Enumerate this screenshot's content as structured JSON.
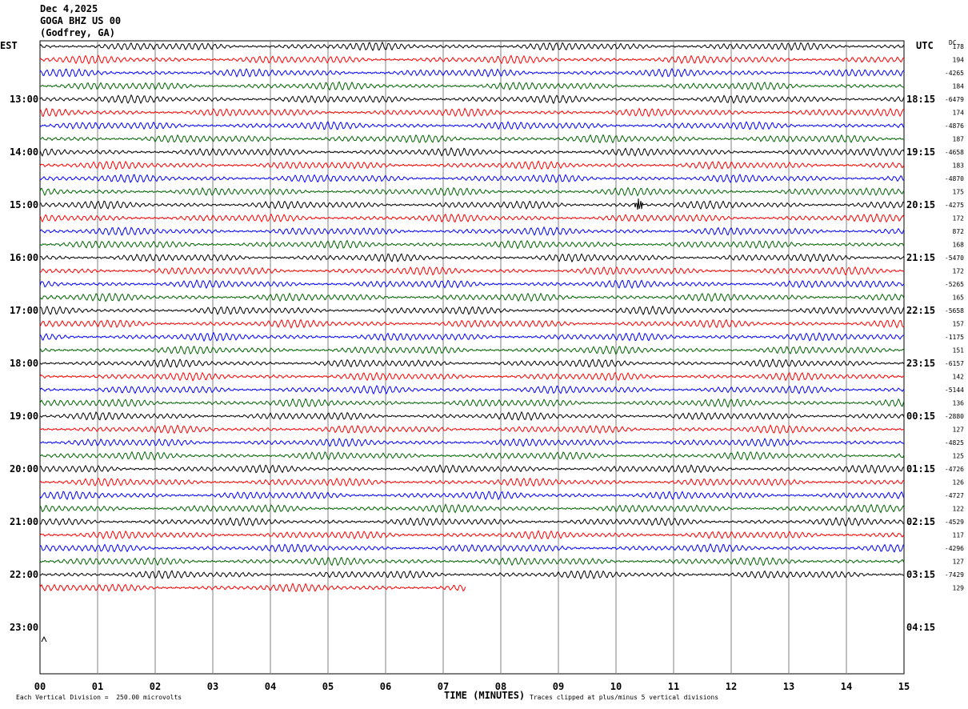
{
  "header": {
    "date": "Dec 4,2025",
    "station": "GOGA BHZ US 00",
    "location": "(Godfrey, GA)"
  },
  "left_tz": "EST",
  "right_tz": "UTC",
  "dc_label": "DC",
  "footer": {
    "scale_note": "Each Vertical Division =  250.00 microvolts",
    "clip_note": "Traces clipped at plus/minus 5 vertical divisions"
  },
  "colors": {
    "black": "#000000",
    "red": "#ff0000",
    "blue": "#0000ff",
    "green": "#006400",
    "grid": "#808080"
  },
  "chart_data": {
    "type": "line",
    "title": "",
    "xlabel": "TIME (MINUTES)",
    "x_ticks": [
      "00",
      "01",
      "02",
      "03",
      "04",
      "05",
      "06",
      "07",
      "08",
      "09",
      "10",
      "11",
      "12",
      "13",
      "14",
      "15"
    ],
    "xlim": [
      0,
      15
    ],
    "traces_per_hour": 4,
    "trace_interval_minutes": 15,
    "left_hour_labels": [
      "13:00",
      "14:00",
      "15:00",
      "16:00",
      "17:00",
      "18:00",
      "19:00",
      "20:00",
      "21:00",
      "22:00",
      "23:00"
    ],
    "right_hour_labels": [
      "18:15",
      "19:15",
      "20:15",
      "21:15",
      "22:15",
      "23:15",
      "00:15",
      "01:15",
      "02:15",
      "03:15",
      "04:15"
    ],
    "trace_color_cycle": [
      "black",
      "red",
      "blue",
      "green"
    ],
    "dc_offsets": [
      "178",
      "194",
      "-4265",
      "184",
      "-6479",
      "174",
      "-4876",
      "187",
      "-4658",
      "183",
      "-4870",
      "175",
      "-4275",
      "172",
      "872",
      "168",
      "-5470",
      "172",
      "-5265",
      "165",
      "-5658",
      "157",
      "-1175",
      "151",
      "-6157",
      "142",
      "-5144",
      "136",
      "-2880",
      "127",
      "-4825",
      "125",
      "-4726",
      "126",
      "-4727",
      "122",
      "-4529",
      "117",
      "-4296",
      "127",
      "-7429",
      "129"
    ],
    "last_trace_end_minute": 7.4,
    "notable_event": {
      "trace_index": 12,
      "minute": 10.4
    }
  }
}
